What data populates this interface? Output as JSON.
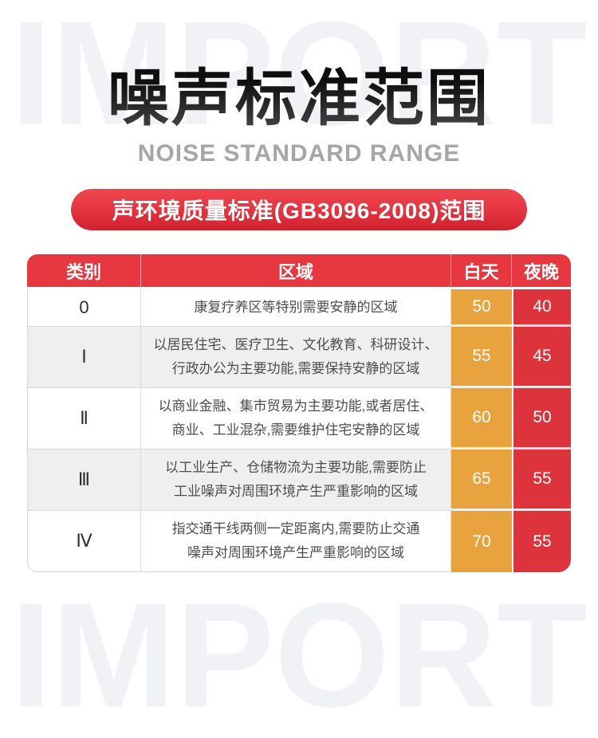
{
  "watermark": {
    "text": "IMPORT"
  },
  "header": {
    "title": "噪声标准范围",
    "subtitle": "NOISE STANDARD RANGE"
  },
  "banner": {
    "label": "声环境质量标准(GB3096-2008)范围"
  },
  "table": {
    "columns": {
      "category": "类别",
      "area": "区域",
      "day": "白天",
      "night": "夜晚"
    },
    "rows": [
      {
        "category": "0",
        "area": "康复疗养区等特别需要安静的区域",
        "day": "50",
        "night": "40"
      },
      {
        "category": "Ⅰ",
        "area": "以居民住宅、医疗卫生、文化教育、科研设计、\n行政办公为主要功能,需要保持安静的区域",
        "day": "55",
        "night": "45"
      },
      {
        "category": "Ⅱ",
        "area": "以商业金融、集市贸易为主要功能,或者居住、\n商业、工业混杂,需要维护住宅安静的区域",
        "day": "60",
        "night": "50"
      },
      {
        "category": "Ⅲ",
        "area": "以工业生产、仓储物流为主要功能,需要防止\n工业噪声对周围环境产生严重影响的区域",
        "day": "65",
        "night": "55"
      },
      {
        "category": "Ⅳ",
        "area": "指交通干线两侧一定距离内,需要防止交通\n噪声对周围环境产生严重影响的区域",
        "day": "70",
        "night": "55"
      }
    ]
  },
  "colors": {
    "header_red": "#e73741",
    "night_cell_red": "#dd333c",
    "day_cell_orange": "#e8a33f",
    "banner_red": "#e23440",
    "row_alt_gray": "#efefef",
    "grid_gray": "#d9d9d9",
    "title_black": "#1b1b1b",
    "subtitle_gray": "#a6a6a6",
    "watermark_gray": "#f1f2f6"
  }
}
